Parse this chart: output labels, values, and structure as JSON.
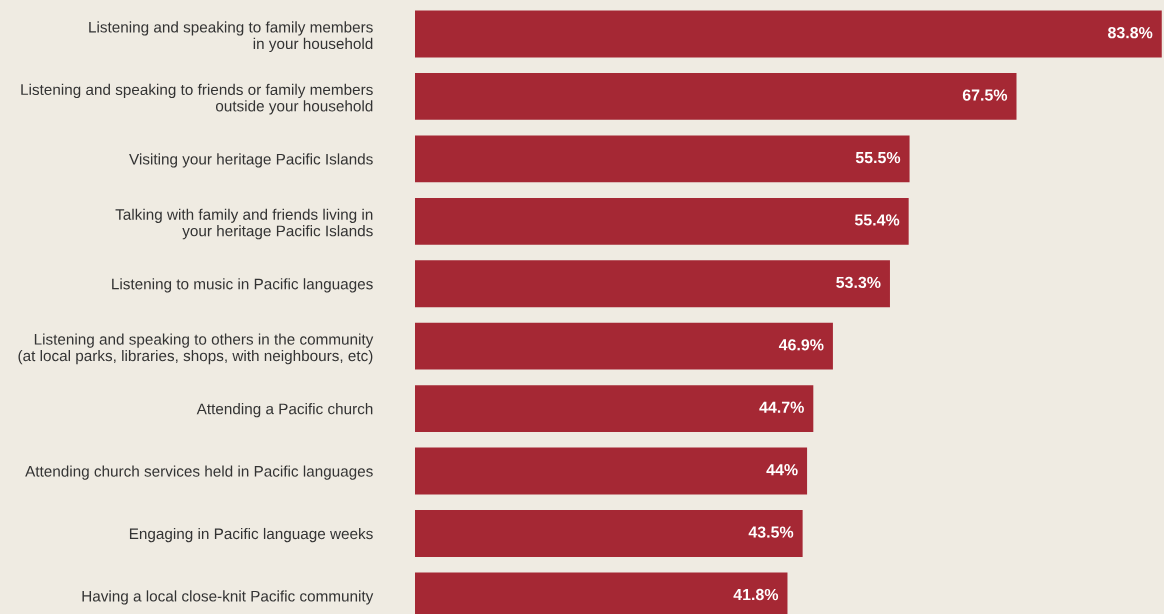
{
  "chart_data": {
    "type": "bar",
    "orientation": "horizontal",
    "categories": [
      "Listening and speaking to family members\nin your household",
      "Listening and speaking to friends or family members\noutside your household",
      "Visiting your heritage Pacific Islands",
      "Talking with family and friends living in\nyour heritage Pacific Islands",
      "Listening to music in Pacific languages",
      "Listening and speaking to others in the community\n(at local parks, libraries, shops, with neighbours, etc)",
      "Attending a Pacific church",
      "Attending church services held in Pacific languages",
      "Engaging in Pacific language weeks",
      "Having a local close-knit Pacific community"
    ],
    "values": [
      83.8,
      67.5,
      55.5,
      55.4,
      53.3,
      46.9,
      44.7,
      44,
      43.5,
      41.8
    ],
    "value_labels": [
      "83.8%",
      "67.5%",
      "55.5%",
      "55.4%",
      "53.3%",
      "46.9%",
      "44.7%",
      "44%",
      "43.5%",
      "41.8%"
    ],
    "color": "#a52834",
    "tick_labels": "y",
    "grid": false,
    "legend": false
  }
}
